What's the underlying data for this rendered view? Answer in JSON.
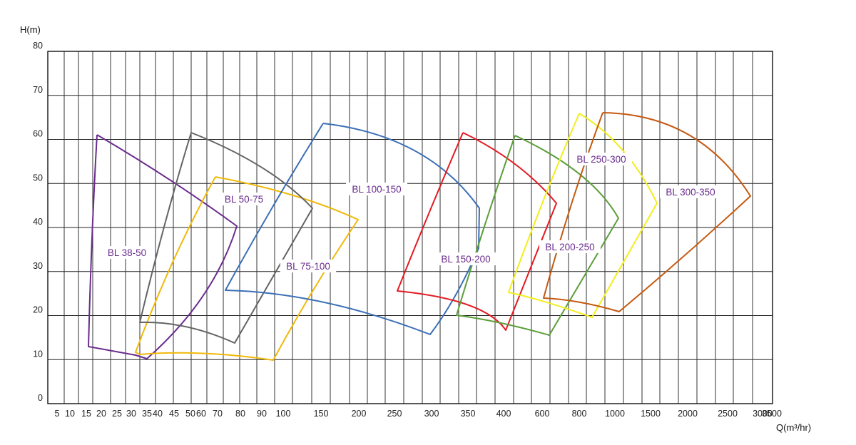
{
  "chart_data": {
    "type": "line",
    "title": "",
    "xlabel": "Q(m³/hr)",
    "ylabel": "H(m)",
    "x_ticks": [
      "5",
      "10",
      "15",
      "20",
      "25",
      "30",
      "35",
      "40",
      "45",
      "50",
      "60",
      "70",
      "80",
      "90",
      "100",
      "150",
      "200",
      "250",
      "300",
      "350",
      "400",
      "600",
      "800",
      "1000",
      "1500",
      "2000",
      "2500",
      "3000",
      "3500"
    ],
    "y_ticks": [
      0,
      10,
      20,
      30,
      40,
      50,
      60,
      70,
      80
    ],
    "ylim": [
      0,
      80
    ],
    "grid": true,
    "x_scale": "non-uniform (tick spacing as printed)",
    "series": [
      {
        "name": "BL 38-50",
        "color": "#6a2c8e",
        "points": [
          [
            20,
            61
          ],
          [
            80,
            40
          ],
          [
            40,
            10
          ],
          [
            15,
            13
          ],
          [
            20,
            61
          ]
        ]
      },
      {
        "name": "BL 50-75",
        "color": "#f0b90b",
        "points": [
          [
            70,
            51
          ],
          [
            200,
            42
          ],
          [
            90,
            10
          ],
          [
            33,
            11
          ],
          [
            70,
            51
          ]
        ]
      },
      {
        "name": "BL 75-100",
        "color": "#646464",
        "points": [
          [
            60,
            61
          ],
          [
            135,
            44
          ],
          [
            90,
            13
          ],
          [
            35,
            18
          ],
          [
            60,
            61
          ]
        ]
      },
      {
        "name": "BL 100-150",
        "color": "#3b6fb6",
        "points": [
          [
            150,
            63
          ],
          [
            500,
            44
          ],
          [
            300,
            15
          ],
          [
            70,
            25
          ],
          [
            150,
            63
          ]
        ]
      },
      {
        "name": "BL 150-200",
        "color": "#e31b23",
        "points": [
          [
            400,
            61
          ],
          [
            850,
            45
          ],
          [
            600,
            17
          ],
          [
            250,
            25
          ],
          [
            400,
            61
          ]
        ]
      },
      {
        "name": "BL 200-250",
        "color": "#5a9e3a",
        "points": [
          [
            650,
            61
          ],
          [
            1500,
            42
          ],
          [
            800,
            15
          ],
          [
            360,
            20
          ],
          [
            650,
            61
          ]
        ]
      },
      {
        "name": "BL 250-300",
        "color": "#f2ee1c",
        "points": [
          [
            1000,
            65
          ],
          [
            2000,
            46
          ],
          [
            1100,
            19
          ],
          [
            500,
            25
          ],
          [
            1000,
            65
          ]
        ]
      },
      {
        "name": "BL 300-350",
        "color": "#c55a11",
        "points": [
          [
            1200,
            66
          ],
          [
            3300,
            47
          ],
          [
            1400,
            21
          ],
          [
            800,
            23
          ],
          [
            1200,
            66
          ]
        ]
      }
    ]
  }
}
